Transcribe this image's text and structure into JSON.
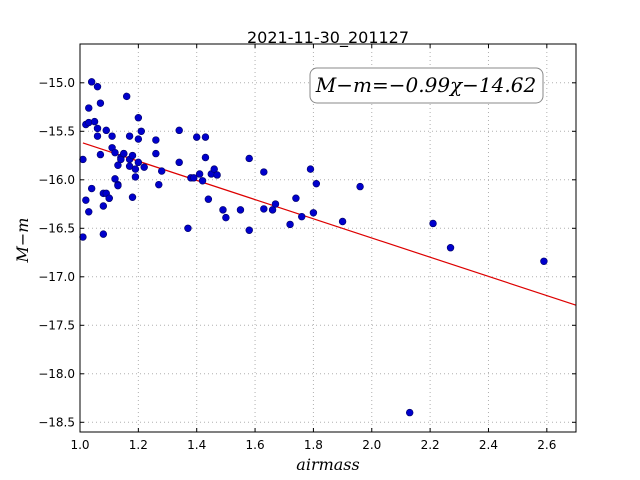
{
  "chart_data": {
    "type": "scatter",
    "title": "2021-11-30_201127",
    "xlabel": "airmass",
    "ylabel": "M−m",
    "annotation": "M−m=−0.99χ−14.62",
    "xlim": [
      1.0,
      2.7
    ],
    "ylim": [
      -18.6,
      -14.6
    ],
    "xticks": [
      1.0,
      1.2,
      1.4,
      1.6,
      1.8,
      2.0,
      2.2,
      2.4,
      2.6
    ],
    "xtick_labels": [
      "1.0",
      "1.2",
      "1.4",
      "1.6",
      "1.8",
      "2.0",
      "2.2",
      "2.4",
      "2.6"
    ],
    "yticks": [
      -15.0,
      -15.5,
      -16.0,
      -16.5,
      -17.0,
      -17.5,
      -18.0,
      -18.5
    ],
    "ytick_labels": [
      "−15.0",
      "−15.5",
      "−16.0",
      "−16.5",
      "−17.0",
      "−17.5",
      "−18.0",
      "−18.5"
    ],
    "grid": true,
    "colors": {
      "points": "#0000cc",
      "fit": "#dd0000"
    },
    "fit": {
      "slope": -0.99,
      "intercept": -14.62
    },
    "points": [
      [
        1.01,
        -16.59
      ],
      [
        1.01,
        -15.79
      ],
      [
        1.02,
        -15.43
      ],
      [
        1.02,
        -16.21
      ],
      [
        1.03,
        -15.41
      ],
      [
        1.03,
        -16.33
      ],
      [
        1.03,
        -15.26
      ],
      [
        1.04,
        -14.99
      ],
      [
        1.04,
        -16.09
      ],
      [
        1.05,
        -15.4
      ],
      [
        1.06,
        -15.55
      ],
      [
        1.06,
        -15.47
      ],
      [
        1.06,
        -15.04
      ],
      [
        1.07,
        -15.21
      ],
      [
        1.07,
        -15.74
      ],
      [
        1.08,
        -16.14
      ],
      [
        1.08,
        -16.27
      ],
      [
        1.08,
        -16.56
      ],
      [
        1.09,
        -15.49
      ],
      [
        1.09,
        -16.14
      ],
      [
        1.1,
        -16.19
      ],
      [
        1.1,
        -16.19
      ],
      [
        1.11,
        -15.55
      ],
      [
        1.11,
        -15.67
      ],
      [
        1.12,
        -15.72
      ],
      [
        1.12,
        -15.99
      ],
      [
        1.13,
        -15.85
      ],
      [
        1.13,
        -16.05
      ],
      [
        1.13,
        -16.06
      ],
      [
        1.14,
        -15.77
      ],
      [
        1.14,
        -15.79
      ],
      [
        1.15,
        -15.73
      ],
      [
        1.15,
        -15.73
      ],
      [
        1.16,
        -15.14
      ],
      [
        1.17,
        -15.55
      ],
      [
        1.17,
        -15.79
      ],
      [
        1.17,
        -15.86
      ],
      [
        1.18,
        -15.75
      ],
      [
        1.18,
        -16.18
      ],
      [
        1.19,
        -15.89
      ],
      [
        1.19,
        -15.97
      ],
      [
        1.2,
        -15.36
      ],
      [
        1.2,
        -15.58
      ],
      [
        1.2,
        -15.82
      ],
      [
        1.21,
        -15.5
      ],
      [
        1.22,
        -15.87
      ],
      [
        1.26,
        -15.59
      ],
      [
        1.26,
        -15.73
      ],
      [
        1.27,
        -16.05
      ],
      [
        1.28,
        -15.91
      ],
      [
        1.34,
        -15.49
      ],
      [
        1.34,
        -15.82
      ],
      [
        1.37,
        -16.5
      ],
      [
        1.38,
        -15.98
      ],
      [
        1.39,
        -15.98
      ],
      [
        1.4,
        -15.56
      ],
      [
        1.41,
        -15.94
      ],
      [
        1.42,
        -16.01
      ],
      [
        1.43,
        -15.56
      ],
      [
        1.43,
        -15.77
      ],
      [
        1.44,
        -16.2
      ],
      [
        1.45,
        -15.94
      ],
      [
        1.46,
        -15.89
      ],
      [
        1.47,
        -15.95
      ],
      [
        1.49,
        -16.31
      ],
      [
        1.5,
        -16.39
      ],
      [
        1.55,
        -16.31
      ],
      [
        1.58,
        -15.78
      ],
      [
        1.58,
        -16.52
      ],
      [
        1.63,
        -16.3
      ],
      [
        1.63,
        -15.92
      ],
      [
        1.66,
        -16.31
      ],
      [
        1.67,
        -16.25
      ],
      [
        1.72,
        -16.46
      ],
      [
        1.74,
        -16.19
      ],
      [
        1.76,
        -16.38
      ],
      [
        1.79,
        -15.89
      ],
      [
        1.8,
        -16.34
      ],
      [
        1.81,
        -16.04
      ],
      [
        1.9,
        -16.43
      ],
      [
        1.96,
        -16.07
      ],
      [
        2.13,
        -18.4
      ],
      [
        2.21,
        -16.45
      ],
      [
        2.27,
        -16.7
      ],
      [
        2.59,
        -16.84
      ]
    ]
  }
}
